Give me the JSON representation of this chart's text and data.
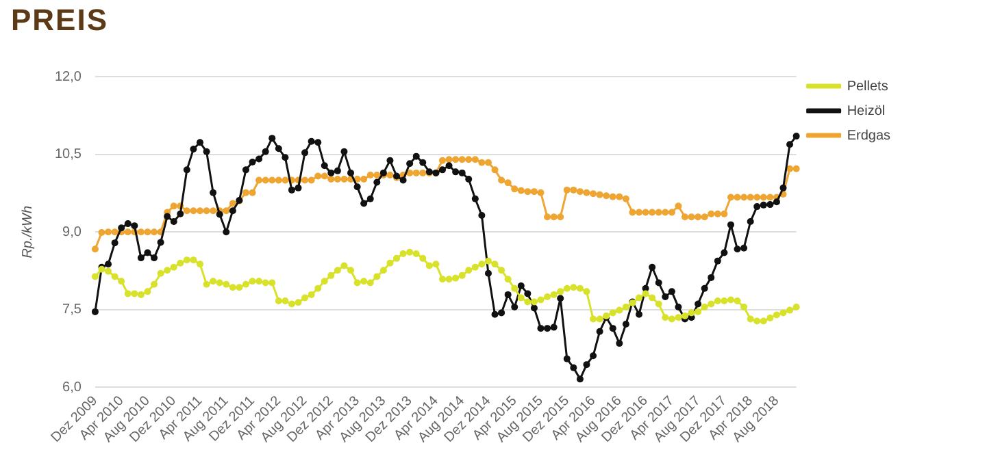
{
  "chart_data": {
    "type": "line",
    "title": "PREIS",
    "ylabel": "Rp./kWh",
    "categories": [
      "Dez 2009",
      null,
      null,
      null,
      "Apr 2010",
      null,
      null,
      null,
      "Aug 2010",
      null,
      null,
      null,
      "Dez 2010",
      null,
      null,
      null,
      "Apr 2011",
      null,
      null,
      null,
      "Aug 2011",
      null,
      null,
      null,
      "Dez 2011",
      null,
      null,
      null,
      "Apr 2012",
      null,
      null,
      null,
      "Aug 2012",
      null,
      null,
      null,
      "Dez 2012",
      null,
      null,
      null,
      "Apr 2013",
      null,
      null,
      null,
      "Aug 2013",
      null,
      null,
      null,
      "Dez 2013",
      null,
      null,
      null,
      "Apr 2014",
      null,
      null,
      null,
      "Aug 2014",
      null,
      null,
      null,
      "Dez 2014",
      null,
      null,
      null,
      "Apr 2015",
      null,
      null,
      null,
      "Aug 2015",
      null,
      null,
      null,
      "Dez 2015",
      null,
      null,
      null,
      "Apr 2016",
      null,
      null,
      null,
      "Aug 2016",
      null,
      null,
      null,
      "Dez 2016",
      null,
      null,
      null,
      "Apr 2017",
      null,
      null,
      null,
      "Aug 2017",
      null,
      null,
      null,
      "Dez 2017",
      null,
      null,
      null,
      "Apr 2018",
      null,
      null,
      null,
      "Aug 2018",
      null,
      null,
      null
    ],
    "series": [
      {
        "name": "Pellets",
        "color": "#d8e22a",
        "values": [
          8.14,
          8.28,
          8.24,
          8.14,
          8.05,
          7.81,
          7.81,
          7.79,
          7.85,
          7.99,
          8.2,
          8.26,
          8.32,
          8.4,
          8.46,
          8.46,
          8.38,
          7.99,
          8.05,
          8.02,
          7.99,
          7.93,
          7.93,
          7.99,
          8.05,
          8.05,
          8.02,
          8.02,
          7.67,
          7.67,
          7.61,
          7.64,
          7.73,
          7.79,
          7.91,
          8.05,
          8.16,
          8.26,
          8.35,
          8.26,
          8.02,
          8.05,
          8.02,
          8.14,
          8.26,
          8.4,
          8.49,
          8.58,
          8.61,
          8.58,
          8.49,
          8.35,
          8.38,
          8.09,
          8.09,
          8.11,
          8.16,
          8.26,
          8.32,
          8.38,
          8.44,
          8.38,
          8.26,
          8.09,
          7.91,
          7.73,
          7.65,
          7.65,
          7.69,
          7.75,
          7.79,
          7.85,
          7.91,
          7.93,
          7.91,
          7.85,
          7.32,
          7.32,
          7.38,
          7.44,
          7.49,
          7.55,
          7.63,
          7.73,
          7.81,
          7.73,
          7.61,
          7.35,
          7.32,
          7.35,
          7.38,
          7.44,
          7.46,
          7.55,
          7.61,
          7.67,
          7.67,
          7.69,
          7.67,
          7.55,
          7.32,
          7.28,
          7.28,
          7.34,
          7.4,
          7.44,
          7.49,
          7.55
        ]
      },
      {
        "name": "Heizöl",
        "color": "#111111",
        "values": [
          7.46,
          8.32,
          8.38,
          8.79,
          9.08,
          9.16,
          9.12,
          8.5,
          8.6,
          8.5,
          8.8,
          9.3,
          9.2,
          9.35,
          10.2,
          10.6,
          10.73,
          10.55,
          9.76,
          9.34,
          9.0,
          9.41,
          9.61,
          10.2,
          10.35,
          10.41,
          10.55,
          10.81,
          10.61,
          10.44,
          9.81,
          9.85,
          10.53,
          10.75,
          10.73,
          10.28,
          10.14,
          10.18,
          10.55,
          10.14,
          9.87,
          9.55,
          9.64,
          9.96,
          10.14,
          10.38,
          10.08,
          10.0,
          10.32,
          10.46,
          10.34,
          10.16,
          10.14,
          10.2,
          10.28,
          10.16,
          10.14,
          10.02,
          9.64,
          9.32,
          8.2,
          7.41,
          7.44,
          7.79,
          7.55,
          7.96,
          7.81,
          7.53,
          7.14,
          7.14,
          7.16,
          7.72,
          6.55,
          6.38,
          6.16,
          6.44,
          6.61,
          7.08,
          7.35,
          7.14,
          6.85,
          7.22,
          7.65,
          7.41,
          7.91,
          8.32,
          8.02,
          7.75,
          7.85,
          7.55,
          7.32,
          7.35,
          7.61,
          7.91,
          8.12,
          8.44,
          8.6,
          9.14,
          8.67,
          8.69,
          9.2,
          9.49,
          9.52,
          9.53,
          9.58,
          9.85,
          10.69,
          10.85
        ]
      },
      {
        "name": "Erdgas",
        "color": "#eea531",
        "values": [
          8.67,
          8.99,
          9.0,
          9.0,
          9.0,
          9.0,
          9.0,
          9.0,
          9.0,
          9.0,
          9.0,
          9.38,
          9.5,
          9.5,
          9.41,
          9.41,
          9.41,
          9.41,
          9.41,
          9.41,
          9.41,
          9.55,
          9.6,
          9.76,
          9.76,
          10.0,
          10.0,
          10.0,
          10.0,
          10.0,
          10.0,
          10.0,
          10.0,
          10.0,
          10.08,
          10.08,
          10.02,
          10.02,
          10.02,
          10.02,
          10.02,
          10.02,
          10.1,
          10.1,
          10.1,
          10.1,
          10.05,
          10.1,
          10.14,
          10.14,
          10.14,
          10.14,
          10.14,
          10.38,
          10.4,
          10.4,
          10.4,
          10.4,
          10.4,
          10.34,
          10.34,
          10.2,
          10.0,
          9.95,
          9.83,
          9.8,
          9.78,
          9.78,
          9.76,
          9.29,
          9.29,
          9.29,
          9.81,
          9.81,
          9.78,
          9.76,
          9.74,
          9.72,
          9.7,
          9.68,
          9.68,
          9.64,
          9.38,
          9.38,
          9.38,
          9.38,
          9.38,
          9.38,
          9.38,
          9.5,
          9.29,
          9.29,
          9.29,
          9.29,
          9.35,
          9.35,
          9.35,
          9.67,
          9.67,
          9.67,
          9.67,
          9.67,
          9.67,
          9.67,
          9.67,
          9.73,
          10.22,
          10.22
        ]
      }
    ],
    "ylim": [
      6,
      12
    ],
    "yticks": [
      {
        "value": 6,
        "label": "6,0"
      },
      {
        "value": 7.5,
        "label": "7,5"
      },
      {
        "value": 9,
        "label": "9,0"
      },
      {
        "value": 10.5,
        "label": "10,5"
      },
      {
        "value": 12,
        "label": "12,0"
      }
    ],
    "grid": "y",
    "legend": "top right",
    "marker": "circle",
    "line_style": "solid"
  }
}
